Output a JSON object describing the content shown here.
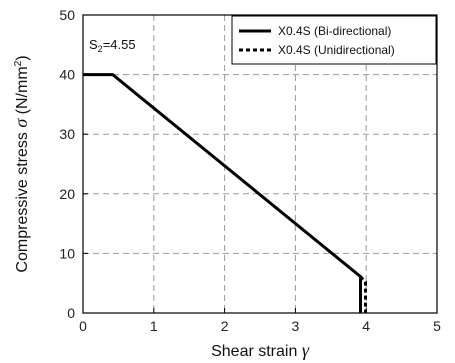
{
  "chart_data": {
    "type": "line",
    "xlabel_text": "Shear strain ",
    "xlabel_symbol": "γ",
    "ylabel_text": "Compressive stress ",
    "ylabel_symbol": "σ",
    "ylabel_units": " (N/mm",
    "ylabel_sup": "2",
    "ylabel_close": ")",
    "xlim": [
      0,
      5
    ],
    "ylim": [
      0,
      50
    ],
    "xticks": [
      "0",
      "1",
      "2",
      "3",
      "4",
      "5"
    ],
    "yticks": [
      "0",
      "10",
      "20",
      "30",
      "40",
      "50"
    ],
    "grid": true,
    "legend_position": "top-right",
    "annotation": {
      "main": "S",
      "sub": "2",
      "rest": "=4.55"
    },
    "series": [
      {
        "name": "X0.4S (Bi-directional)",
        "style": "solid",
        "color": "#000000",
        "x": [
          0,
          0.42,
          3.92,
          3.92
        ],
        "y": [
          40,
          40,
          6.1,
          0
        ]
      },
      {
        "name": "X0.4S (Unidirectional)",
        "style": "dotted",
        "color": "#000000",
        "x": [
          3.92,
          3.99,
          3.99
        ],
        "y": [
          6.1,
          5.2,
          0
        ]
      }
    ]
  }
}
